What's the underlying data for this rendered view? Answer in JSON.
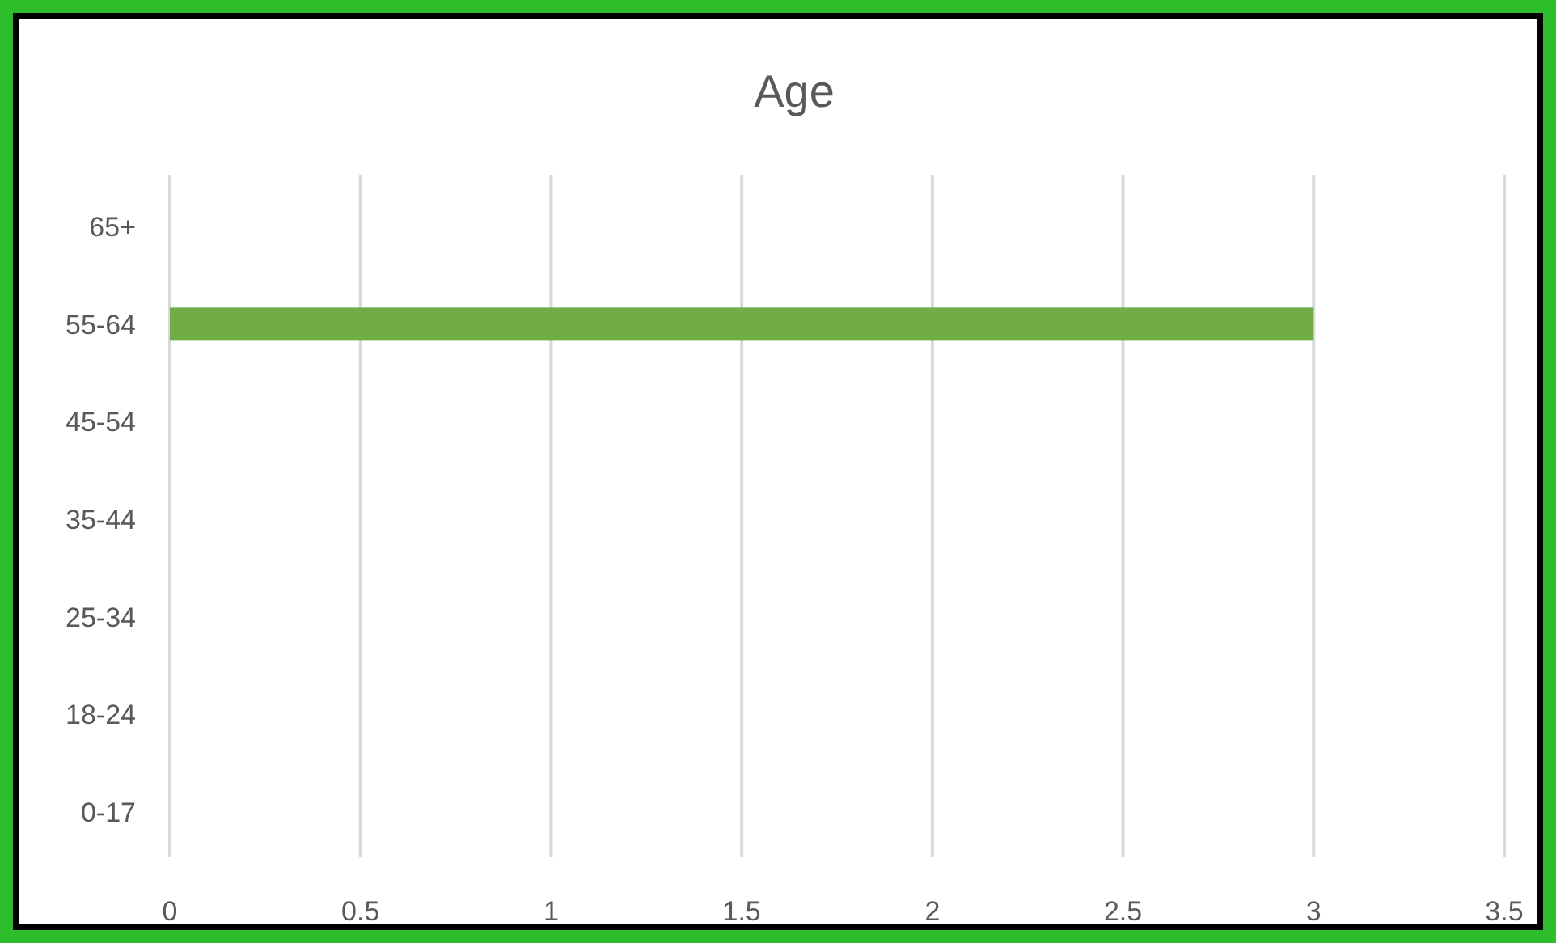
{
  "chart_data": {
    "type": "bar",
    "title": "Age",
    "orientation": "horizontal",
    "categories": [
      "65+",
      "55-64",
      "45-54",
      "35-44",
      "25-34",
      "18-24",
      "0-17"
    ],
    "values": [
      0,
      3,
      0,
      0,
      0,
      0,
      0
    ],
    "color": "#70ad47",
    "xlim": [
      0,
      3.5
    ],
    "xticks": [
      0,
      0.5,
      1,
      1.5,
      2,
      2.5,
      3,
      3.5
    ],
    "grid": "x"
  }
}
